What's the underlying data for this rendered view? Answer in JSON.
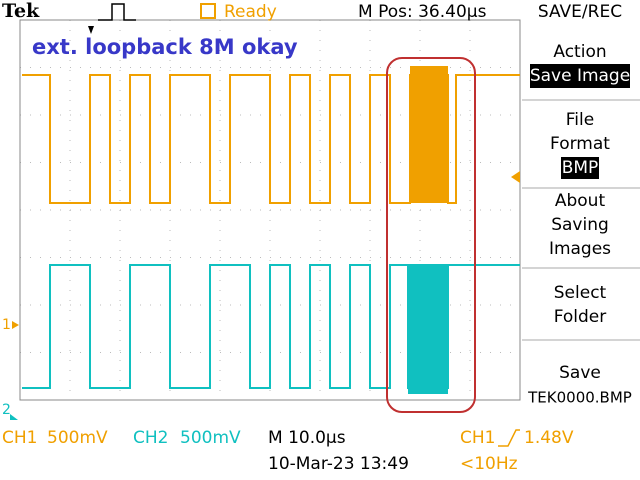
{
  "header": {
    "brand": "Tek",
    "status": "Ready",
    "position": "M Pos: 36.40µs",
    "menu_title": "SAVE/REC"
  },
  "annotation": "ext. loopback 8M okay",
  "menu": [
    {
      "lines": [
        "Action"
      ],
      "value": "Save Image"
    },
    {
      "lines": [
        "File",
        "Format"
      ],
      "value": "BMP"
    },
    {
      "lines": [
        "About",
        "Saving",
        "Images"
      ]
    },
    {
      "lines": [
        "Select",
        "Folder"
      ]
    },
    {
      "lines": [
        "Save",
        "TEK0000.BMP"
      ]
    }
  ],
  "channel_markers": [
    "1",
    "2"
  ],
  "footer": {
    "ch1": "CH1",
    "ch1_scale": "500mV",
    "ch2": "CH2",
    "ch2_scale": "500mV",
    "timebase": "M 10.0µs",
    "trigger_source": "CH1",
    "trigger_level": "1.48V",
    "date": "10-Mar-23 13:49",
    "frequency": "<10Hz"
  }
}
